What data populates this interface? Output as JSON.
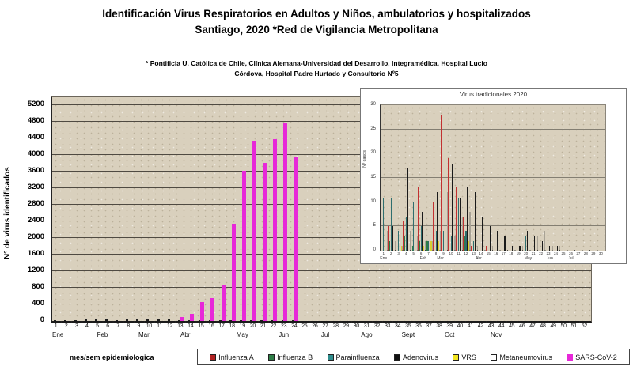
{
  "header": {
    "title_line1": "Identificación Virus Respiratorios en Adultos y Niños, ambulatorios y hospitalizados",
    "title_line2": "Santiago, 2020  *Red de Vigilancia Metropolitana",
    "subtitle_line1": "* Pontificia U. Católica de Chile, Clínica Alemana-Universidad del Desarrollo, Integramédica, Hospital Lucio",
    "subtitle_line2": "Córdova, Hospital Padre Hurtado y Consultorio Nº5"
  },
  "legend": {
    "items": [
      {
        "label": "Influenza A",
        "color": "#b22222"
      },
      {
        "label": "Influenza B",
        "color": "#2e7d46"
      },
      {
        "label": "Parainfluenza",
        "color": "#2e8c8c"
      },
      {
        "label": "Adenovirus",
        "color": "#111111"
      },
      {
        "label": "VRS",
        "color": "#f2e520"
      },
      {
        "label": "Metaneumovirus",
        "color": "#ffffff"
      },
      {
        "label": "SARS-CoV-2",
        "color": "#e728d8"
      }
    ]
  },
  "chart_data": [
    {
      "type": "bar",
      "name": "main",
      "title": "",
      "xlabel": "mes/sem epidemiologica",
      "ylabel": "N° de virus identificados",
      "ylim": [
        0,
        5200
      ],
      "yticks": [
        0,
        400,
        800,
        1200,
        1600,
        2000,
        2400,
        2800,
        3200,
        3600,
        4000,
        4400,
        4800,
        5200
      ],
      "weeks": [
        1,
        2,
        3,
        4,
        5,
        6,
        7,
        8,
        9,
        10,
        11,
        12,
        13,
        14,
        15,
        16,
        17,
        18,
        19,
        20,
        21,
        22,
        23,
        24,
        25,
        26,
        27,
        28,
        29,
        30,
        31,
        32,
        33,
        34,
        35,
        36,
        37,
        38,
        39,
        40,
        41,
        42,
        43,
        44,
        45,
        46,
        47,
        48,
        49,
        50,
        51,
        52
      ],
      "months": [
        {
          "label": "Ene",
          "week": 1.2
        },
        {
          "label": "Feb",
          "week": 5.5
        },
        {
          "label": "Mar",
          "week": 9.5
        },
        {
          "label": "Abr",
          "week": 13.5
        },
        {
          "label": "May",
          "week": 19
        },
        {
          "label": "Jun",
          "week": 23
        },
        {
          "label": "Jul",
          "week": 27
        },
        {
          "label": "Ago",
          "week": 31
        },
        {
          "label": "Sept",
          "week": 35
        },
        {
          "label": "Oct",
          "week": 39
        },
        {
          "label": "Nov",
          "week": 43.5
        }
      ],
      "series": [
        {
          "name": "SARS-CoV-2",
          "color": "#e728d8",
          "values": [
            0,
            0,
            0,
            0,
            0,
            0,
            0,
            0,
            0,
            0,
            0,
            0,
            100,
            170,
            460,
            560,
            870,
            2350,
            3620,
            4350,
            3810,
            4390,
            4790,
            3950,
            0,
            0,
            0,
            0,
            0,
            0,
            0,
            0,
            0,
            0,
            0,
            0,
            0,
            0,
            0,
            0,
            0,
            0,
            0,
            0,
            0,
            0,
            0,
            0,
            0,
            0,
            0,
            0
          ]
        }
      ]
    },
    {
      "type": "bar",
      "name": "inset",
      "title": "Virus tradicionales 2020",
      "ylabel": "Nº casos",
      "ylim": [
        0,
        30
      ],
      "yticks": [
        0,
        5,
        10,
        15,
        20,
        25,
        30
      ],
      "weeks": [
        1,
        2,
        3,
        4,
        5,
        6,
        7,
        8,
        9,
        10,
        11,
        12,
        13,
        14,
        15,
        16,
        17,
        18,
        19,
        20,
        21,
        22,
        23,
        24,
        25,
        26,
        27,
        28,
        29,
        30
      ],
      "months": [
        {
          "label": "Ene",
          "week": 1
        },
        {
          "label": "Feb",
          "week": 6.3
        },
        {
          "label": "Mar",
          "week": 8.6
        },
        {
          "label": "Abr",
          "week": 13.7
        },
        {
          "label": "May",
          "week": 20.3
        },
        {
          "label": "Jun",
          "week": 23.2
        },
        {
          "label": "Jul",
          "week": 26
        }
      ],
      "series": [
        {
          "name": "Influenza A",
          "color": "#c23030",
          "values": [
            0,
            5,
            7,
            6,
            13,
            13,
            10,
            10,
            28,
            19,
            13,
            7,
            1,
            0,
            1,
            0,
            0,
            0,
            0,
            0,
            0,
            0,
            0,
            0,
            0,
            0,
            0,
            0,
            0,
            0
          ]
        },
        {
          "name": "Influenza B",
          "color": "#2e7d46",
          "values": [
            0,
            2,
            0,
            3,
            1,
            2,
            2,
            0,
            0,
            0,
            20,
            3,
            0,
            0,
            0,
            0,
            0,
            0,
            0,
            0,
            0,
            0,
            0,
            0,
            0,
            0,
            0,
            0,
            0,
            0
          ]
        },
        {
          "name": "Parainfluenza",
          "color": "#2e6e6e",
          "values": [
            11,
            11,
            4,
            7,
            10,
            5,
            2,
            4,
            4,
            3,
            11,
            4,
            2,
            0,
            0,
            0,
            0,
            0,
            0,
            3,
            0,
            0,
            0,
            0,
            0,
            0,
            0,
            0,
            0,
            0
          ]
        },
        {
          "name": "Adenovirus",
          "color": "#1a1a1a",
          "values": [
            4,
            5,
            9,
            17,
            12,
            8,
            8,
            12,
            5,
            18,
            11,
            13,
            12,
            7,
            5,
            4,
            3,
            1,
            1,
            4,
            3,
            2,
            1,
            1,
            0,
            0,
            0,
            0,
            0,
            0
          ]
        },
        {
          "name": "VRS",
          "color": "#d8ce30",
          "values": [
            0,
            0,
            1,
            0,
            0,
            1,
            2,
            2,
            0,
            0,
            0,
            2,
            0,
            0,
            1,
            0,
            0,
            0,
            0,
            0,
            0,
            0,
            0,
            0,
            0,
            0,
            0,
            0,
            0,
            0
          ]
        },
        {
          "name": "Metaneumovirus",
          "color": "#ffffff",
          "values": [
            4,
            2,
            1,
            4,
            3,
            2,
            2,
            4,
            12,
            3,
            7,
            8,
            1,
            0,
            1,
            0,
            0,
            0,
            1,
            0,
            3,
            4,
            1,
            1,
            0,
            0,
            0,
            0,
            0,
            0
          ]
        }
      ]
    }
  ]
}
